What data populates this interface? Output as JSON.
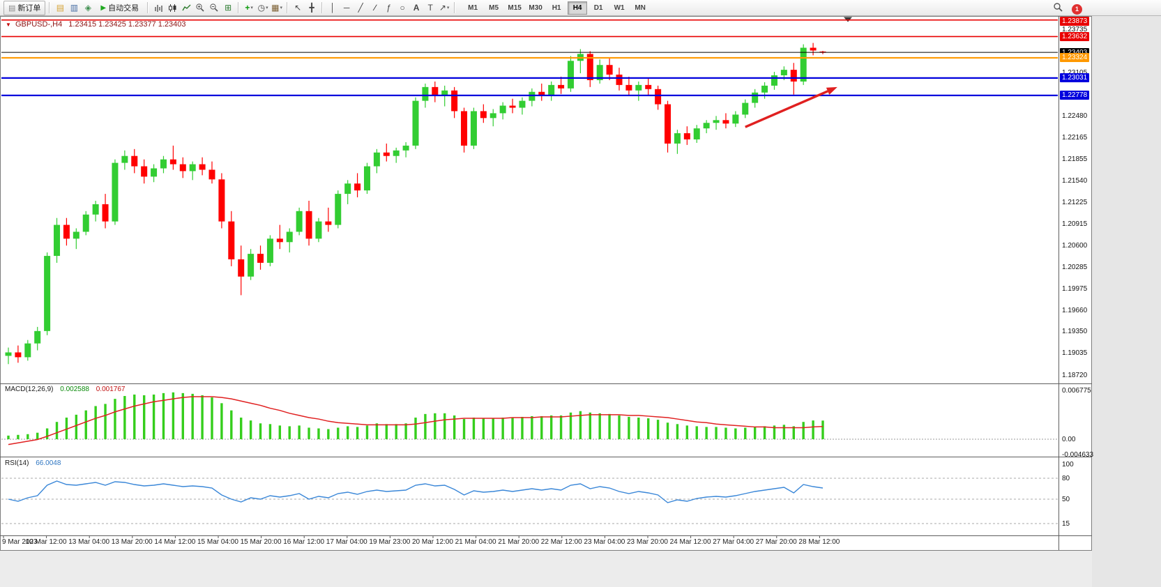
{
  "toolbar": {
    "new_order_label": "新订单",
    "auto_trading_label": "自动交易",
    "timeframes": [
      "M1",
      "M5",
      "M15",
      "M30",
      "H1",
      "H4",
      "D1",
      "W1",
      "MN"
    ],
    "active_timeframe": "H4",
    "notification_count": "1"
  },
  "chart": {
    "symbol": "GBPUSD-,H4",
    "quote_ohlc": "1.23415 1.23425 1.23377 1.23403"
  },
  "chart_data": {
    "type": "candlestick",
    "symbol": "GBPUSD-",
    "timeframe": "H4",
    "up_color": "#32CD32",
    "down_color": "#FF0000",
    "y_axis": {
      "min": 1.1862,
      "max": 1.2392,
      "ticks": [
        "1.23735",
        "1.23105",
        "1.22480",
        "1.22165",
        "1.21855",
        "1.21540",
        "1.21225",
        "1.20915",
        "1.20600",
        "1.20285",
        "1.19975",
        "1.19660",
        "1.19350",
        "1.19035",
        "1.18720"
      ]
    },
    "levels": [
      {
        "price": 1.23873,
        "label": "1.23873",
        "color": "#E80000",
        "width": 1.6
      },
      {
        "price": 1.23632,
        "label": "1.23632",
        "color": "#E80000",
        "width": 1.6
      },
      {
        "price": 1.23403,
        "label": "1.23403",
        "color": "#000000",
        "width": 1.1
      },
      {
        "price": 1.23324,
        "label": "1.23324",
        "color": "#FF9900",
        "width": 2.2
      },
      {
        "price": 1.23031,
        "label": "1.23031",
        "color": "#0000DD",
        "width": 2.2
      },
      {
        "price": 1.22778,
        "label": "1.22778",
        "color": "#0000DD",
        "width": 2.2
      }
    ],
    "x_labels": [
      "9 Mar 2023",
      "10 Mar 12:00",
      "13 Mar 04:00",
      "13 Mar 20:00",
      "14 Mar 12:00",
      "15 Mar 04:00",
      "15 Mar 20:00",
      "16 Mar 12:00",
      "17 Mar 04:00",
      "19 Mar 23:00",
      "20 Mar 12:00",
      "21 Mar 04:00",
      "21 Mar 20:00",
      "22 Mar 12:00",
      "23 Mar 04:00",
      "23 Mar 20:00",
      "24 Mar 12:00",
      "27 Mar 04:00",
      "27 Mar 20:00",
      "28 Mar 12:00"
    ],
    "candles": [
      [
        1.19,
        1.1912,
        1.1888,
        1.1905
      ],
      [
        1.1905,
        1.1915,
        1.189,
        1.1898
      ],
      [
        1.1898,
        1.1923,
        1.1893,
        1.1918
      ],
      [
        1.1918,
        1.1942,
        1.1908,
        1.1936
      ],
      [
        1.1936,
        1.205,
        1.193,
        1.2045
      ],
      [
        1.2045,
        1.21,
        1.2035,
        1.209
      ],
      [
        1.209,
        1.21,
        1.206,
        1.207
      ],
      [
        1.207,
        1.2085,
        1.2055,
        1.208
      ],
      [
        1.208,
        1.211,
        1.2075,
        1.2105
      ],
      [
        1.2105,
        1.2125,
        1.2095,
        1.212
      ],
      [
        1.212,
        1.2135,
        1.2085,
        1.2095
      ],
      [
        1.2095,
        1.2185,
        1.209,
        1.218
      ],
      [
        1.218,
        1.2198,
        1.217,
        1.219
      ],
      [
        1.219,
        1.22,
        1.2165,
        1.2175
      ],
      [
        1.2175,
        1.2185,
        1.215,
        1.216
      ],
      [
        1.216,
        1.2178,
        1.2152,
        1.2172
      ],
      [
        1.2172,
        1.219,
        1.2165,
        1.2185
      ],
      [
        1.2185,
        1.2205,
        1.217,
        1.2178
      ],
      [
        1.2178,
        1.2188,
        1.2158,
        1.2168
      ],
      [
        1.2168,
        1.2182,
        1.2155,
        1.2178
      ],
      [
        1.2178,
        1.2188,
        1.2162,
        1.217
      ],
      [
        1.217,
        1.2182,
        1.215,
        1.2156
      ],
      [
        1.2156,
        1.2165,
        1.2085,
        1.2095
      ],
      [
        1.2095,
        1.211,
        1.203,
        1.204
      ],
      [
        1.204,
        1.206,
        1.1988,
        1.2015
      ],
      [
        1.2015,
        1.2055,
        1.201,
        1.2048
      ],
      [
        1.2048,
        1.206,
        1.2025,
        1.2035
      ],
      [
        1.2035,
        1.2075,
        1.203,
        1.207
      ],
      [
        1.207,
        1.209,
        1.2055,
        1.2065
      ],
      [
        1.2065,
        1.2085,
        1.205,
        1.208
      ],
      [
        1.208,
        1.2115,
        1.2075,
        1.211
      ],
      [
        1.211,
        1.2125,
        1.206,
        1.207
      ],
      [
        1.207,
        1.21,
        1.2065,
        1.2095
      ],
      [
        1.2095,
        1.2115,
        1.208,
        1.209
      ],
      [
        1.209,
        1.214,
        1.2085,
        1.2135
      ],
      [
        1.2135,
        1.2155,
        1.212,
        1.215
      ],
      [
        1.215,
        1.2165,
        1.213,
        1.214
      ],
      [
        1.214,
        1.218,
        1.2135,
        1.2175
      ],
      [
        1.2175,
        1.22,
        1.2165,
        1.2195
      ],
      [
        1.2195,
        1.2208,
        1.2182,
        1.219
      ],
      [
        1.219,
        1.2202,
        1.218,
        1.2198
      ],
      [
        1.2198,
        1.221,
        1.2188,
        1.2205
      ],
      [
        1.2205,
        1.2275,
        1.22,
        1.227
      ],
      [
        1.227,
        1.2295,
        1.226,
        1.229
      ],
      [
        1.229,
        1.2298,
        1.2268,
        1.2278
      ],
      [
        1.2278,
        1.2292,
        1.2262,
        1.2285
      ],
      [
        1.2285,
        1.229,
        1.2245,
        1.2255
      ],
      [
        1.2255,
        1.226,
        1.2195,
        1.2205
      ],
      [
        1.2205,
        1.226,
        1.22,
        1.2255
      ],
      [
        1.2255,
        1.2265,
        1.2238,
        1.2245
      ],
      [
        1.2245,
        1.2258,
        1.2233,
        1.2252
      ],
      [
        1.2252,
        1.2268,
        1.2243,
        1.2263
      ],
      [
        1.2263,
        1.2273,
        1.2252,
        1.226
      ],
      [
        1.226,
        1.2275,
        1.225,
        1.227
      ],
      [
        1.227,
        1.2288,
        1.2262,
        1.2283
      ],
      [
        1.2283,
        1.2295,
        1.227,
        1.2278
      ],
      [
        1.2278,
        1.2298,
        1.227,
        1.2293
      ],
      [
        1.2293,
        1.2305,
        1.228,
        1.2288
      ],
      [
        1.2288,
        1.2335,
        1.2283,
        1.2328
      ],
      [
        1.2328,
        1.2345,
        1.231,
        1.2338
      ],
      [
        1.2338,
        1.2342,
        1.229,
        1.23
      ],
      [
        1.23,
        1.233,
        1.2295,
        1.2322
      ],
      [
        1.2322,
        1.2333,
        1.23,
        1.2308
      ],
      [
        1.2308,
        1.2318,
        1.2285,
        1.2293
      ],
      [
        1.2293,
        1.2305,
        1.2278,
        1.2285
      ],
      [
        1.2285,
        1.2298,
        1.227,
        1.2293
      ],
      [
        1.2293,
        1.2302,
        1.2278,
        1.2287
      ],
      [
        1.2287,
        1.2292,
        1.2257,
        1.2265
      ],
      [
        1.2265,
        1.227,
        1.2195,
        1.2208
      ],
      [
        1.2208,
        1.2228,
        1.2193,
        1.2223
      ],
      [
        1.2223,
        1.2233,
        1.2206,
        1.2214
      ],
      [
        1.2214,
        1.2235,
        1.2209,
        1.223
      ],
      [
        1.223,
        1.2242,
        1.2223,
        1.2238
      ],
      [
        1.2238,
        1.2248,
        1.2228,
        1.2242
      ],
      [
        1.2242,
        1.2252,
        1.223,
        1.2237
      ],
      [
        1.2237,
        1.2255,
        1.2232,
        1.225
      ],
      [
        1.225,
        1.2272,
        1.2245,
        1.2267
      ],
      [
        1.2267,
        1.2287,
        1.226,
        1.2282
      ],
      [
        1.2282,
        1.2297,
        1.2273,
        1.2292
      ],
      [
        1.2292,
        1.2312,
        1.2286,
        1.2307
      ],
      [
        1.2307,
        1.232,
        1.23,
        1.2315
      ],
      [
        1.2315,
        1.2325,
        1.2279,
        1.2298
      ],
      [
        1.2298,
        1.2352,
        1.2293,
        1.2347
      ],
      [
        1.2347,
        1.2354,
        1.2336,
        1.2343
      ],
      [
        1.23415,
        1.23425,
        1.23377,
        1.23403
      ]
    ],
    "annotations": [
      {
        "type": "arrow",
        "color": "#E02020",
        "from": {
          "x_index": 76,
          "price": 1.2232
        },
        "to": {
          "x_index": 85.5,
          "price": 1.229
        }
      }
    ]
  },
  "macd": {
    "label": "MACD(12,26,9)",
    "value_main": "0.002588",
    "value_signal": "0.001767",
    "scale": {
      "max": "0.006775",
      "zero": "0.00",
      "min": "-0.004633"
    },
    "histogram_color": "#35CE1C",
    "signal_color": "#E02020",
    "histogram": [
      0.0005,
      0.0006,
      0.0007,
      0.0009,
      0.0015,
      0.0024,
      0.003,
      0.0034,
      0.004,
      0.0046,
      0.0049,
      0.0056,
      0.006,
      0.0062,
      0.0061,
      0.0062,
      0.0064,
      0.0065,
      0.0064,
      0.0063,
      0.0061,
      0.0058,
      0.005,
      0.004,
      0.003,
      0.0026,
      0.0022,
      0.0021,
      0.0019,
      0.0018,
      0.0019,
      0.0016,
      0.0015,
      0.0014,
      0.0016,
      0.0018,
      0.0017,
      0.0019,
      0.0022,
      0.0021,
      0.0021,
      0.0022,
      0.003,
      0.0035,
      0.0036,
      0.0036,
      0.0033,
      0.0028,
      0.003,
      0.0029,
      0.0029,
      0.003,
      0.003,
      0.0031,
      0.0032,
      0.0032,
      0.0033,
      0.0033,
      0.0037,
      0.0039,
      0.0037,
      0.0036,
      0.0035,
      0.0033,
      0.0031,
      0.003,
      0.0029,
      0.0027,
      0.0023,
      0.0021,
      0.0019,
      0.0018,
      0.0017,
      0.0017,
      0.0016,
      0.0015,
      0.0016,
      0.0017,
      0.0018,
      0.0019,
      0.002,
      0.0018,
      0.0024,
      0.0026,
      0.002588
    ],
    "signal": [
      -0.0016,
      -0.0011,
      -0.0006,
      -0.0001,
      0.0004,
      0.0009,
      0.0014,
      0.0019,
      0.0024,
      0.0029,
      0.0033,
      0.0038,
      0.0042,
      0.0046,
      0.0049,
      0.0052,
      0.0054,
      0.0056,
      0.0058,
      0.0059,
      0.0059,
      0.0059,
      0.0058,
      0.0056,
      0.0053,
      0.005,
      0.0047,
      0.0043,
      0.004,
      0.0036,
      0.0033,
      0.003,
      0.0028,
      0.0025,
      0.0023,
      0.0022,
      0.0021,
      0.002,
      0.002,
      0.002,
      0.002,
      0.002,
      0.0021,
      0.0023,
      0.0025,
      0.0027,
      0.0028,
      0.0029,
      0.0029,
      0.0029,
      0.0029,
      0.0029,
      0.003,
      0.003,
      0.003,
      0.0031,
      0.0031,
      0.0031,
      0.0032,
      0.0033,
      0.0034,
      0.0034,
      0.0034,
      0.0034,
      0.0033,
      0.0033,
      0.0032,
      0.0031,
      0.003,
      0.0028,
      0.0026,
      0.0024,
      0.0023,
      0.0021,
      0.002,
      0.0019,
      0.0018,
      0.0017,
      0.0017,
      0.0016,
      0.0016,
      0.0016,
      0.0016,
      0.0017,
      0.001767
    ]
  },
  "rsi": {
    "label": "RSI(14)",
    "value": "66.0048",
    "line_color": "#3A87D8",
    "scale_labels": [
      "100",
      "80",
      "50",
      "15"
    ],
    "levels": [
      80,
      50,
      15
    ],
    "values": [
      50,
      47,
      52,
      55,
      70,
      76,
      71,
      70,
      72,
      74,
      70,
      75,
      74,
      71,
      69,
      70,
      72,
      70,
      68,
      69,
      68,
      66,
      56,
      50,
      46,
      52,
      50,
      55,
      53,
      55,
      58,
      50,
      54,
      52,
      58,
      60,
      57,
      61,
      63,
      61,
      62,
      63,
      70,
      72,
      69,
      70,
      64,
      56,
      62,
      60,
      61,
      63,
      61,
      63,
      65,
      63,
      65,
      63,
      70,
      72,
      65,
      68,
      66,
      61,
      58,
      61,
      59,
      56,
      45,
      49,
      47,
      51,
      53,
      54,
      53,
      55,
      58,
      61,
      63,
      65,
      67,
      59,
      71,
      68,
      66.0048
    ]
  }
}
